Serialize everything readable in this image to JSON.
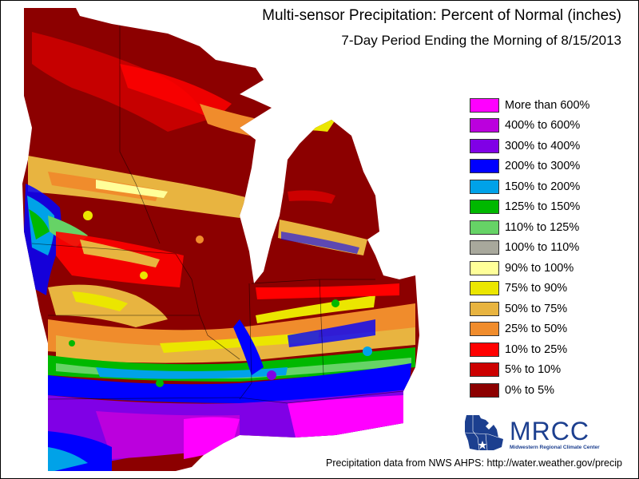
{
  "map": {
    "title": "Multi-sensor Precipitation: Percent of Normal (inches)",
    "subtitle": "7-Day Period Ending the Morning of 8/15/2013",
    "source_note": "Precipitation data from NWS AHPS:  http://water.weather.gov/precip",
    "region_style": {
      "water_color": "#ffffff",
      "border_color": "#8a8a8a"
    }
  },
  "legend": {
    "items": [
      {
        "label": "More than 600%",
        "color": "#ff00ff"
      },
      {
        "label": "400% to 600%",
        "color": "#bb00dd"
      },
      {
        "label": "300% to 400%",
        "color": "#8000e6"
      },
      {
        "label": "200% to 300%",
        "color": "#0000ff"
      },
      {
        "label": "150% to 200%",
        "color": "#00a2e8"
      },
      {
        "label": "125% to 150%",
        "color": "#00b800"
      },
      {
        "label": "110% to 125%",
        "color": "#66d366"
      },
      {
        "label": "100% to 110%",
        "color": "#a8a89c"
      },
      {
        "label": "90% to 100%",
        "color": "#ffff99"
      },
      {
        "label": "75% to 90%",
        "color": "#ebe600"
      },
      {
        "label": "50% to 75%",
        "color": "#e8b440"
      },
      {
        "label": "25% to 50%",
        "color": "#f08c2c"
      },
      {
        "label": "10% to 25%",
        "color": "#ff0000"
      },
      {
        "label": "5% to 10%",
        "color": "#cc0000"
      },
      {
        "label": "0% to 5%",
        "color": "#8c0000"
      }
    ]
  },
  "logo": {
    "name": "MRCC",
    "full_name": "Midwestern Regional Climate Center",
    "color": "#1c3f8f"
  }
}
